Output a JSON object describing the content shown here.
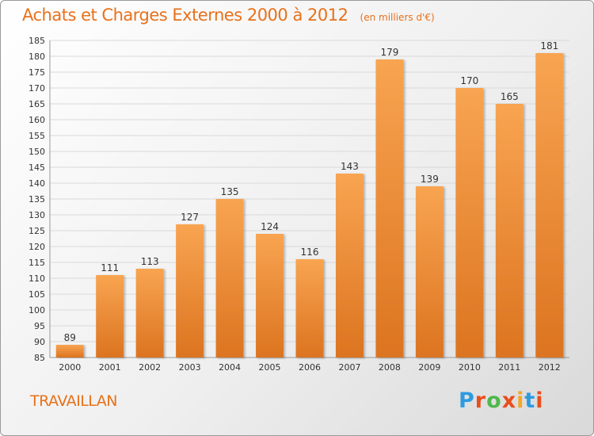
{
  "colors": {
    "title": "#e8711a",
    "bar_light": "#f8a451",
    "bar_dark": "#dc7420",
    "grid": "#d9d9d9",
    "axis_text": "#333333",
    "logo": [
      "#2e9be0",
      "#e84e1b",
      "#4fb84a",
      "#e84e1b",
      "#f5a623",
      "#2e9be0",
      "#e84e1b"
    ]
  },
  "header": {
    "title": "Achats et Charges Externes 2000 à 2012",
    "unit": "(en milliers d'€)"
  },
  "city": "TRAVAILLAN",
  "logo": {
    "letters": [
      "P",
      "r",
      "o",
      "x",
      "i",
      "t",
      "i"
    ]
  },
  "chart_data": {
    "type": "bar",
    "title": "Achats et Charges Externes 2000 à 2012",
    "unit_label": "(en milliers d'€)",
    "categories": [
      "2000",
      "2001",
      "2002",
      "2003",
      "2004",
      "2005",
      "2006",
      "2007",
      "2008",
      "2009",
      "2010",
      "2011",
      "2012"
    ],
    "values": [
      89,
      111,
      113,
      127,
      135,
      124,
      116,
      143,
      179,
      139,
      170,
      165,
      181
    ],
    "ylim": [
      85,
      185
    ],
    "yticks": [
      85,
      90,
      95,
      100,
      105,
      110,
      115,
      120,
      125,
      130,
      135,
      140,
      145,
      150,
      155,
      160,
      165,
      170,
      175,
      180,
      185
    ],
    "grid": true,
    "legend": "none"
  }
}
